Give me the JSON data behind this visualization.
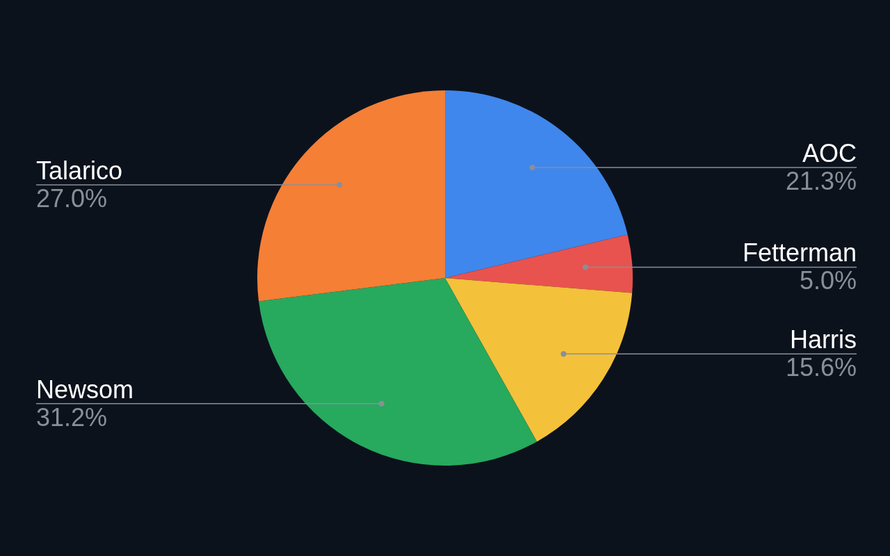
{
  "chart_data": {
    "type": "pie",
    "categories": [
      "AOC",
      "Fetterman",
      "Harris",
      "Newsom",
      "Talarico"
    ],
    "values": [
      21.3,
      5.0,
      15.6,
      31.2,
      27.0
    ],
    "value_labels": [
      "21.3%",
      "5.0%",
      "15.6%",
      "31.2%",
      "27.0%"
    ],
    "colors": [
      "#3f87ec",
      "#e8534f",
      "#f4c13a",
      "#27a95e",
      "#f57f35"
    ],
    "legend": false
  }
}
